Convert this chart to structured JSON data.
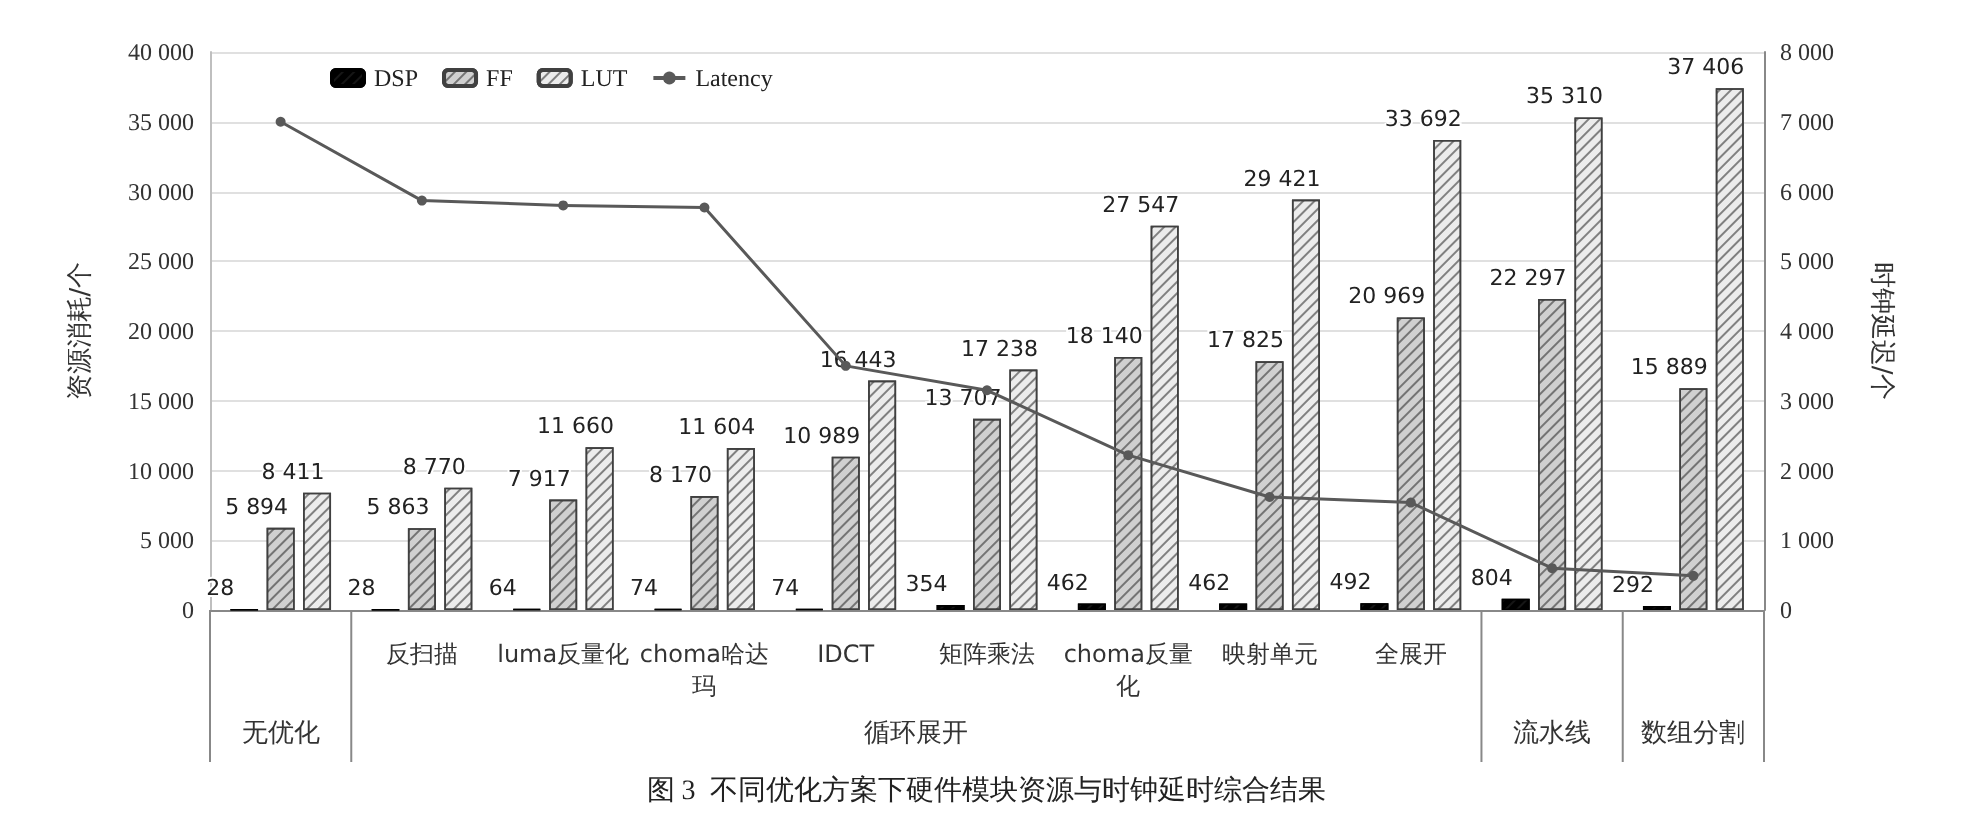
{
  "chart_data": {
    "type": "bar",
    "title": "图 3  不同优化方案下硬件模块资源与时钟延时综合结果",
    "ylabel": "资源消耗/个",
    "y2label": "时钟延迟/个",
    "categories": [
      null,
      "反扫描",
      "luma反量化",
      "choma哈达玛",
      "IDCT",
      "矩阵乘法",
      "choma反量化",
      "映射单元",
      "全展开",
      null,
      null
    ],
    "annotations": [
      "无优化",
      "循环展开",
      "流水线",
      "数组分割"
    ],
    "series": [
      {
        "name": "DSP",
        "color": "#000000",
        "values": [
          28,
          28,
          64,
          74,
          74,
          354,
          462,
          462,
          492,
          804,
          292
        ],
        "value_labels": [
          "28",
          "28",
          "64",
          "74",
          "74",
          "354",
          "462",
          "462",
          "492",
          "804",
          "292"
        ]
      },
      {
        "name": "FF",
        "color": "#d0d0d0",
        "values": [
          5894,
          5863,
          7917,
          8170,
          10989,
          13707,
          18140,
          17825,
          20969,
          22297,
          15889
        ],
        "value_labels": [
          "5 894",
          "5 863",
          "7 917",
          "8 170",
          "10 989",
          "13 707",
          "18 140",
          "17 825",
          "20 969",
          "22 297",
          "15 889"
        ]
      },
      {
        "name": "LUT",
        "color": "#ececec",
        "values": [
          8411,
          8770,
          11660,
          11604,
          16443,
          17238,
          27547,
          29421,
          33692,
          35310,
          37406
        ],
        "value_labels": [
          "8 411",
          "8 770",
          "11 660",
          "11 604",
          "16 443",
          "17 238",
          "27 547",
          "29 421",
          "33 692",
          "35 310",
          "37 406"
        ]
      },
      {
        "name": "Latency",
        "type": "line",
        "axis": "y2",
        "color": "#595959",
        "marker": "circle",
        "values": [
          7000,
          5870,
          5800,
          5770,
          3500,
          3150,
          2220,
          1620,
          1540,
          600,
          490
        ]
      }
    ],
    "ylim": [
      0,
      40000
    ],
    "yticks": [
      0,
      {
        "value": 5000,
        "label": "5 000"
      },
      {
        "value": 10000,
        "label": "10 000"
      },
      {
        "value": 15000,
        "label": "15 000"
      },
      {
        "value": 20000,
        "label": "20 000"
      },
      {
        "value": 25000,
        "label": "25 000"
      },
      {
        "value": 30000,
        "label": "30 000"
      },
      {
        "value": 35000,
        "label": "35 000"
      },
      {
        "value": 40000,
        "label": "40 000"
      }
    ],
    "y2lim": [
      0,
      8000
    ],
    "y2ticks": [
      0,
      {
        "value": 1000,
        "label": "1 000"
      },
      {
        "value": 2000,
        "label": "2 000"
      },
      {
        "value": 3000,
        "label": "3 000"
      },
      {
        "value": 4000,
        "label": "4 000"
      },
      {
        "value": 5000,
        "label": "5 000"
      },
      {
        "value": 6000,
        "label": "6 000"
      },
      {
        "value": 7000,
        "label": "7 000"
      },
      {
        "value": 8000,
        "label": "8 000"
      }
    ],
    "grid": "y",
    "legend": "top left"
  }
}
